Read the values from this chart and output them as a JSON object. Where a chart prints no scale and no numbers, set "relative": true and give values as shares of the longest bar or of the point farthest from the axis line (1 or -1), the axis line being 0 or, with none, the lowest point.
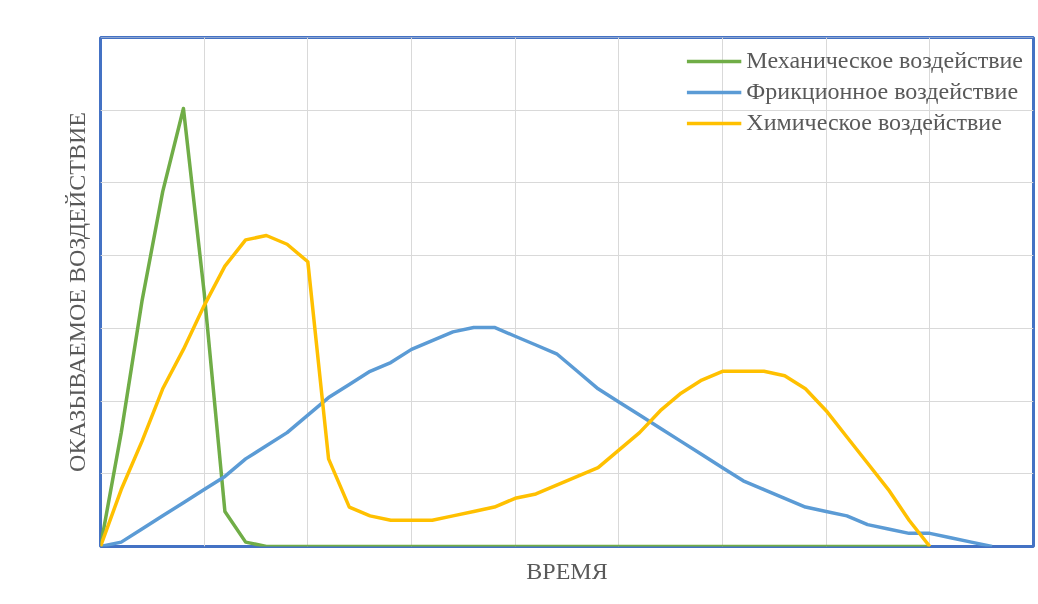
{
  "chart_data": {
    "type": "line",
    "relative": true,
    "xlabel": "ВРЕМЯ",
    "ylabel": "ОКАЗЫВАЕМОЕ ВОЗДЕЙСТВИЕ",
    "grid": true,
    "legend": "top right",
    "marker": "none",
    "line_style": "solid",
    "categories": [
      null,
      null,
      null,
      null,
      null,
      null,
      null,
      null,
      null,
      null,
      null,
      null,
      null,
      null,
      null,
      null,
      null,
      null,
      null,
      null,
      null,
      null,
      null,
      null,
      null,
      null,
      null,
      null,
      null,
      null,
      null,
      null,
      null,
      null,
      null,
      null,
      null,
      null,
      null,
      null,
      null,
      null,
      null,
      null,
      null,
      null
    ],
    "series": [
      {
        "name": "Механическое воздействие",
        "color": "#70ad47",
        "values": [
          0,
          0.26,
          0.56,
          0.81,
          1,
          0.58,
          0.08,
          0.01,
          0,
          0,
          0,
          0,
          0,
          0,
          0,
          0,
          0,
          0,
          0,
          0,
          0,
          0,
          0,
          0,
          0,
          0,
          0,
          0,
          0,
          0,
          0,
          0,
          0,
          0,
          0,
          0,
          0,
          0,
          0,
          0,
          0,
          null,
          null,
          null,
          null,
          null
        ]
      },
      {
        "name": "Фрикционное воздействие",
        "color": "#5b9bd5",
        "values": [
          0,
          0.01,
          0.04,
          0.07,
          0.1,
          0.13,
          0.16,
          0.2,
          0.23,
          0.26,
          0.3,
          0.34,
          0.37,
          0.4,
          0.42,
          0.45,
          0.47,
          0.49,
          0.5,
          0.5,
          0.48,
          0.46,
          0.44,
          0.4,
          0.36,
          0.33,
          0.3,
          0.27,
          0.24,
          0.21,
          0.18,
          0.15,
          0.13,
          0.11,
          0.09,
          0.08,
          0.07,
          0.05,
          0.04,
          0.03,
          0.03,
          0.02,
          0.01,
          0,
          null,
          null
        ]
      },
      {
        "name": "Химическое воздействие",
        "color": "#ffc000",
        "values": [
          0,
          0.13,
          0.24,
          0.36,
          0.45,
          0.55,
          0.64,
          0.7,
          0.71,
          0.69,
          0.65,
          0.2,
          0.09,
          0.07,
          0.06,
          0.06,
          0.06,
          0.07,
          0.08,
          0.09,
          0.11,
          0.12,
          0.14,
          0.16,
          0.18,
          0.22,
          0.26,
          0.31,
          0.35,
          0.38,
          0.4,
          0.4,
          0.4,
          0.39,
          0.36,
          0.31,
          0.25,
          0.19,
          0.13,
          0.06,
          0,
          null,
          null,
          null,
          null,
          null
        ]
      }
    ]
  }
}
